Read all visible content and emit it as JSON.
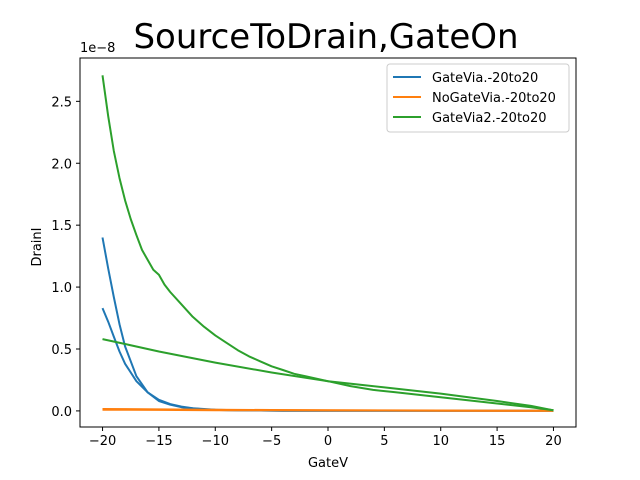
{
  "chart_data": {
    "type": "line",
    "title": "SourceToDrain,GateOn",
    "xlabel": "GateV",
    "ylabel": "DrainI",
    "y_offset_label": "1e−8",
    "xlim": [
      -22,
      22
    ],
    "ylim": [
      -0.13,
      2.85
    ],
    "y_scale_note": "values in units of 1e-8",
    "xticks": [
      -20,
      -15,
      -10,
      -5,
      0,
      5,
      10,
      15,
      20
    ],
    "xtick_labels": [
      "−20",
      "−15",
      "−10",
      "−5",
      "0",
      "5",
      "10",
      "15",
      "20"
    ],
    "yticks": [
      0.0,
      0.5,
      1.0,
      1.5,
      2.0,
      2.5
    ],
    "ytick_labels": [
      "0.0",
      "0.5",
      "1.0",
      "1.5",
      "2.0",
      "2.5"
    ],
    "legend_position": "top-right",
    "grid": false,
    "series": [
      {
        "name": "GateVia.-20to20",
        "color": "#1f77b4",
        "segments": [
          {
            "x": [
              -20,
              -19.5,
              -19,
              -18.5,
              -18,
              -17,
              -16,
              -15,
              -14,
              -13,
              -12,
              -11,
              -10,
              -9,
              -8,
              -6,
              -4,
              -2,
              0,
              5,
              10,
              15,
              20
            ],
            "y": [
              1.4,
              1.15,
              0.92,
              0.7,
              0.52,
              0.28,
              0.15,
              0.08,
              0.05,
              0.03,
              0.02,
              0.012,
              0.008,
              0.005,
              0.004,
              0.003,
              0.002,
              0.002,
              0.001,
              0.001,
              0.001,
              0.001,
              0.001
            ]
          },
          {
            "x": [
              -20,
              -19.5,
              -19,
              -18.5,
              -18,
              -17,
              -16,
              -15,
              -14,
              -13,
              -12,
              -11,
              -10,
              -9,
              -8,
              -6,
              -4,
              -2,
              0,
              5,
              10,
              15,
              20
            ],
            "y": [
              0.83,
              0.72,
              0.6,
              0.48,
              0.38,
              0.24,
              0.15,
              0.09,
              0.055,
              0.035,
              0.022,
              0.015,
              0.01,
              0.007,
              0.005,
              0.003,
              0.002,
              0.002,
              0.001,
              0.001,
              0.001,
              0.001,
              0.001
            ]
          }
        ]
      },
      {
        "name": "NoGateVia.-20to20",
        "color": "#ff7f0e",
        "segments": [
          {
            "x": [
              -20,
              -15,
              -10,
              -5,
              0,
              5,
              10,
              15,
              20
            ],
            "y": [
              0.015,
              0.012,
              0.009,
              0.007,
              0.005,
              0.004,
              0.003,
              0.002,
              0.001
            ]
          },
          {
            "x": [
              -20,
              -15,
              -10,
              -5,
              0,
              5,
              10,
              15,
              20
            ],
            "y": [
              0.01,
              0.008,
              0.006,
              0.005,
              0.004,
              0.003,
              0.002,
              0.002,
              0.001
            ]
          }
        ]
      },
      {
        "name": "GateVia2.-20to20",
        "color": "#2ca02c",
        "segments": [
          {
            "x": [
              -20,
              -19.5,
              -19,
              -18.5,
              -18,
              -17.5,
              -17,
              -16.5,
              -16,
              -15.5,
              -15,
              -14.5,
              -14,
              -13,
              -12,
              -11,
              -10,
              -9,
              -8,
              -7,
              -6,
              -5,
              -4,
              -3,
              -2,
              -1,
              0,
              2,
              4,
              6,
              8,
              10,
              12,
              14,
              16,
              18,
              20
            ],
            "y": [
              2.71,
              2.38,
              2.1,
              1.88,
              1.7,
              1.55,
              1.42,
              1.3,
              1.22,
              1.14,
              1.1,
              1.02,
              0.96,
              0.86,
              0.76,
              0.68,
              0.61,
              0.55,
              0.49,
              0.44,
              0.4,
              0.36,
              0.33,
              0.3,
              0.28,
              0.26,
              0.24,
              0.2,
              0.17,
              0.15,
              0.13,
              0.11,
              0.09,
              0.07,
              0.05,
              0.03,
              0.005
            ]
          },
          {
            "x": [
              -20,
              -18,
              -15,
              -10,
              -5,
              0,
              5,
              10,
              15,
              18,
              20
            ],
            "y": [
              0.58,
              0.54,
              0.48,
              0.39,
              0.31,
              0.24,
              0.19,
              0.14,
              0.08,
              0.04,
              0.005
            ]
          }
        ]
      }
    ]
  }
}
